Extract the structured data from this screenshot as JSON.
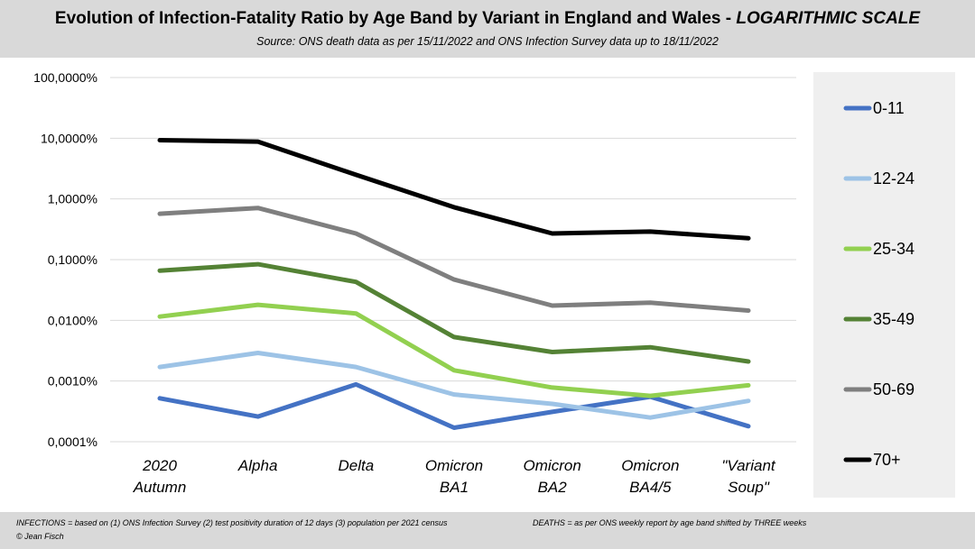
{
  "header": {
    "title_main": "Evolution of Infection-Fatality Ratio by Age Band by Variant in England and Wales - ",
    "title_italic": "LOGARITHMIC SCALE",
    "subtitle": "Source: ONS death data as per 15/11/2022 and ONS Infection Survey data up to 18/11/2022"
  },
  "footer": {
    "infections_note": "INFECTIONS = based on (1) ONS Infection Survey (2) test positivity duration of 12 days (3) population per 2021 census",
    "deaths_note": "DEATHS = as per ONS weekly report by age band shifted by THREE weeks",
    "credit": "© Jean Fisch"
  },
  "chart_data": {
    "type": "line",
    "y_scale": "log",
    "ylim": [
      0.0001,
      100
    ],
    "y_ticks": [
      100,
      10,
      1,
      0.1,
      0.01,
      0.001,
      0.0001
    ],
    "y_tick_labels": [
      "100,0000%",
      "10,0000%",
      "1,0000%",
      "0,1000%",
      "0,0100%",
      "0,0010%",
      "0,0001%"
    ],
    "grid": true,
    "legend_position": "right",
    "categories": [
      [
        "2020",
        "Autumn"
      ],
      [
        "Alpha"
      ],
      [
        "Delta"
      ],
      [
        "Omicron",
        "BA1"
      ],
      [
        "Omicron",
        "BA2"
      ],
      [
        "Omicron",
        "BA4/5"
      ],
      [
        "\"Variant",
        "Soup\""
      ]
    ],
    "series": [
      {
        "name": "0-11",
        "color": "#4472c4",
        "values": [
          0.00052,
          0.00026,
          0.00088,
          0.00017,
          0.00031,
          0.00055,
          0.00018
        ]
      },
      {
        "name": "12-24",
        "color": "#9dc3e6",
        "values": [
          0.0017,
          0.0029,
          0.0017,
          0.0006,
          0.00042,
          0.00025,
          0.00047
        ]
      },
      {
        "name": "25-34",
        "color": "#92d050",
        "values": [
          0.0115,
          0.018,
          0.013,
          0.0015,
          0.00078,
          0.00057,
          0.00085
        ]
      },
      {
        "name": "35-49",
        "color": "#548235",
        "values": [
          0.066,
          0.084,
          0.043,
          0.0053,
          0.003,
          0.0036,
          0.0021
        ]
      },
      {
        "name": "50-69",
        "color": "#7f7f7f",
        "values": [
          0.57,
          0.71,
          0.27,
          0.047,
          0.0175,
          0.0195,
          0.0145
        ]
      },
      {
        "name": "70+",
        "color": "#000000",
        "values": [
          9.3,
          8.8,
          2.5,
          0.73,
          0.27,
          0.29,
          0.225
        ]
      }
    ]
  }
}
